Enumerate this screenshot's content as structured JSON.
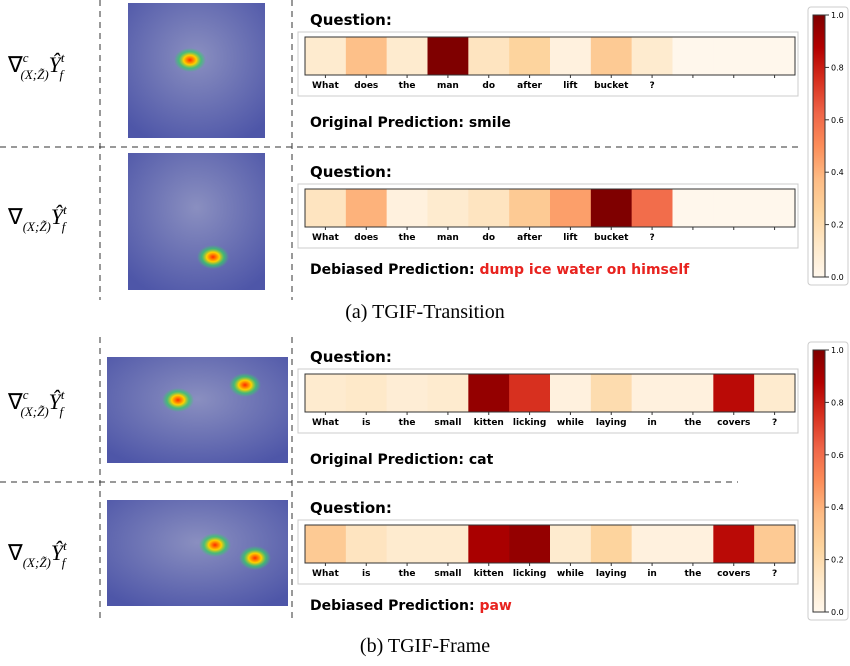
{
  "panels": [
    {
      "caption": "(a) TGIF-Transition",
      "colorbar": {
        "ticks": [
          {
            "value": 0,
            "label": "0.0"
          },
          {
            "value": 0.2,
            "label": "0.2"
          },
          {
            "value": 0.4,
            "label": "0.4"
          },
          {
            "value": 0.6,
            "label": "0.6"
          },
          {
            "value": 0.8,
            "label": "0.8"
          },
          {
            "value": 1,
            "label": "1.0"
          }
        ],
        "lim": [
          0,
          1
        ]
      },
      "rows": [
        {
          "math": {
            "base": "∇",
            "sup": "c",
            "sub": "(X;Z̃)",
            "var": "Ŷ",
            "var_sup": "t",
            "var_sub": "f"
          },
          "question_label": "Question:",
          "words": [
            "What",
            "does",
            "the",
            "man",
            "do",
            "after",
            "lift",
            "bucket",
            "?",
            null,
            null,
            null
          ],
          "weights": [
            0.1,
            0.35,
            0.1,
            1.0,
            0.15,
            0.25,
            0.05,
            0.3,
            0.1,
            0,
            0,
            0
          ],
          "prediction_label": "Original Prediction:",
          "prediction": "smile",
          "prediction_color": "#000000"
        },
        {
          "math": {
            "base": "∇",
            "sub": "(X;Z̃)",
            "var": "Ŷ",
            "var_sup": "t",
            "var_sub": "f"
          },
          "question_label": "Question:",
          "words": [
            "What",
            "does",
            "the",
            "man",
            "do",
            "after",
            "lift",
            "bucket",
            "?",
            null,
            null,
            null
          ],
          "weights": [
            0.15,
            0.4,
            0.05,
            0.1,
            0.15,
            0.3,
            0.45,
            1.0,
            0.6,
            0,
            0,
            0
          ],
          "prediction_label": "Debiased Prediction:",
          "prediction": "dump ice water on himself",
          "prediction_color": "#e8231f"
        }
      ]
    },
    {
      "caption": "(b) TGIF-Frame",
      "colorbar": {
        "ticks": [
          {
            "value": 0,
            "label": "0.0"
          },
          {
            "value": 0.2,
            "label": "0.2"
          },
          {
            "value": 0.4,
            "label": "0.4"
          },
          {
            "value": 0.6,
            "label": "0.6"
          },
          {
            "value": 0.8,
            "label": "0.8"
          },
          {
            "value": 1,
            "label": "1.0"
          }
        ],
        "lim": [
          0,
          1
        ]
      },
      "rows": [
        {
          "math": {
            "base": "∇",
            "sup": "c",
            "sub": "(X;Z̃)",
            "var": "Ŷ",
            "var_sup": "t",
            "var_sub": "f"
          },
          "question_label": "Question:",
          "words": [
            "What",
            "is",
            "the",
            "small",
            "kitten",
            "licking",
            "while",
            "laying",
            "in",
            "the",
            "covers",
            "?"
          ],
          "weights": [
            0.1,
            0.12,
            0.08,
            0.1,
            0.95,
            0.75,
            0.05,
            0.2,
            0.05,
            0.05,
            0.85,
            0.1
          ],
          "prediction_label": "Original Prediction:",
          "prediction": "cat",
          "prediction_color": "#000000"
        },
        {
          "math": {
            "base": "∇",
            "sub": "(X;Z̃)",
            "var": "Ŷ",
            "var_sup": "t",
            "var_sub": "f"
          },
          "question_label": "Question:",
          "words": [
            "What",
            "is",
            "the",
            "small",
            "kitten",
            "licking",
            "while",
            "laying",
            "in",
            "the",
            "covers",
            "?"
          ],
          "weights": [
            0.3,
            0.15,
            0.1,
            0.1,
            0.9,
            0.95,
            0.1,
            0.25,
            0.05,
            0.05,
            0.85,
            0.3
          ],
          "prediction_label": "Debiased Prediction:",
          "prediction": "paw",
          "prediction_color": "#e8231f"
        }
      ]
    }
  ]
}
